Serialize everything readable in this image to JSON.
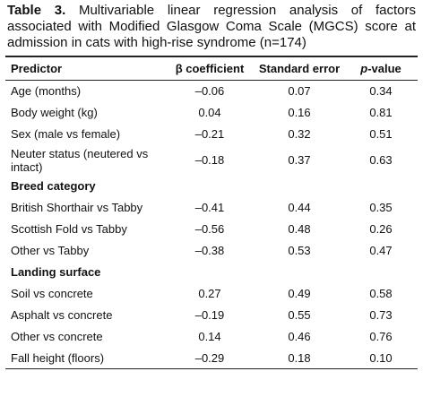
{
  "caption": {
    "label": "Table 3.",
    "text": "Multivariable linear regression analysis of factors associated with Modified Glasgow Coma Scale (MGCS) score at admission in cats with high-rise syndrome (n=174)"
  },
  "table": {
    "header": [
      "Predictor",
      "β coefficient",
      "Standard error",
      "p-value"
    ],
    "rows": [
      [
        "Age (months)",
        "–0.06",
        "0.07",
        "0.34"
      ],
      [
        "Body weight (kg)",
        "0.04",
        "0.16",
        "0.81"
      ],
      [
        "Sex (male vs female)",
        "–0.21",
        "0.32",
        "0.51"
      ],
      [
        "Neuter status (neutered vs intact)",
        "–0.18",
        "0.37",
        "0.63"
      ],
      [
        "Breed category"
      ],
      [
        "British Shorthair vs Tabby",
        "–0.41",
        "0.44",
        "0.35"
      ],
      [
        "Scottish Fold vs Tabby",
        "–0.56",
        "0.48",
        "0.26"
      ],
      [
        "Other vs Tabby",
        "–0.38",
        "0.53",
        "0.47"
      ],
      [
        "Landing surface"
      ],
      [
        "Soil vs concrete",
        "0.27",
        "0.49",
        "0.58"
      ],
      [
        "Asphalt vs concrete",
        "–0.19",
        "0.55",
        "0.73"
      ],
      [
        "Other vs concrete",
        "0.14",
        "0.46",
        "0.76"
      ],
      [
        "Fall height (floors)",
        "–0.29",
        "0.18",
        "0.10"
      ]
    ]
  }
}
